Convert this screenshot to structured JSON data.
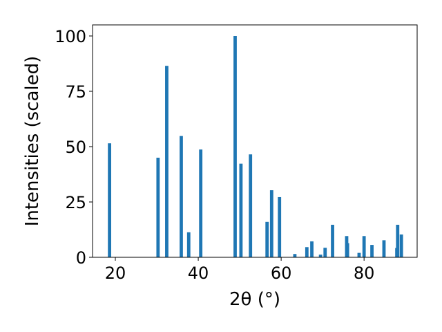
{
  "chart_data": {
    "type": "bar",
    "title": "",
    "xlabel": "2θ (°)",
    "ylabel": "Intensities (scaled)",
    "xlim": [
      14.5,
      92.8
    ],
    "ylim": [
      0,
      105
    ],
    "xticks": [
      20,
      40,
      60,
      80
    ],
    "yticks": [
      0,
      25,
      50,
      75,
      100
    ],
    "xtick_labels": [
      "20",
      "40",
      "60",
      "80"
    ],
    "ytick_labels": [
      "0",
      "25",
      "50",
      "75",
      "100"
    ],
    "grid": false,
    "bar_color": "#1f77b4",
    "bar_width": 0.8,
    "x": [
      18.6,
      30.3,
      32.4,
      35.9,
      37.7,
      40.6,
      48.9,
      50.3,
      52.6,
      56.6,
      57.7,
      59.6,
      63.3,
      66.2,
      67.4,
      69.5,
      70.6,
      72.4,
      75.8,
      76.0,
      78.8,
      80.0,
      81.9,
      84.8,
      87.9,
      88.1,
      89.0
    ],
    "values": [
      51.5,
      45.0,
      86.5,
      54.8,
      11.3,
      48.7,
      100.0,
      42.3,
      46.5,
      16.0,
      30.3,
      27.2,
      1.5,
      4.6,
      7.2,
      1.2,
      4.3,
      14.7,
      9.6,
      6.4,
      2.0,
      9.6,
      5.6,
      7.7,
      4.2,
      14.7,
      10.3
    ]
  }
}
